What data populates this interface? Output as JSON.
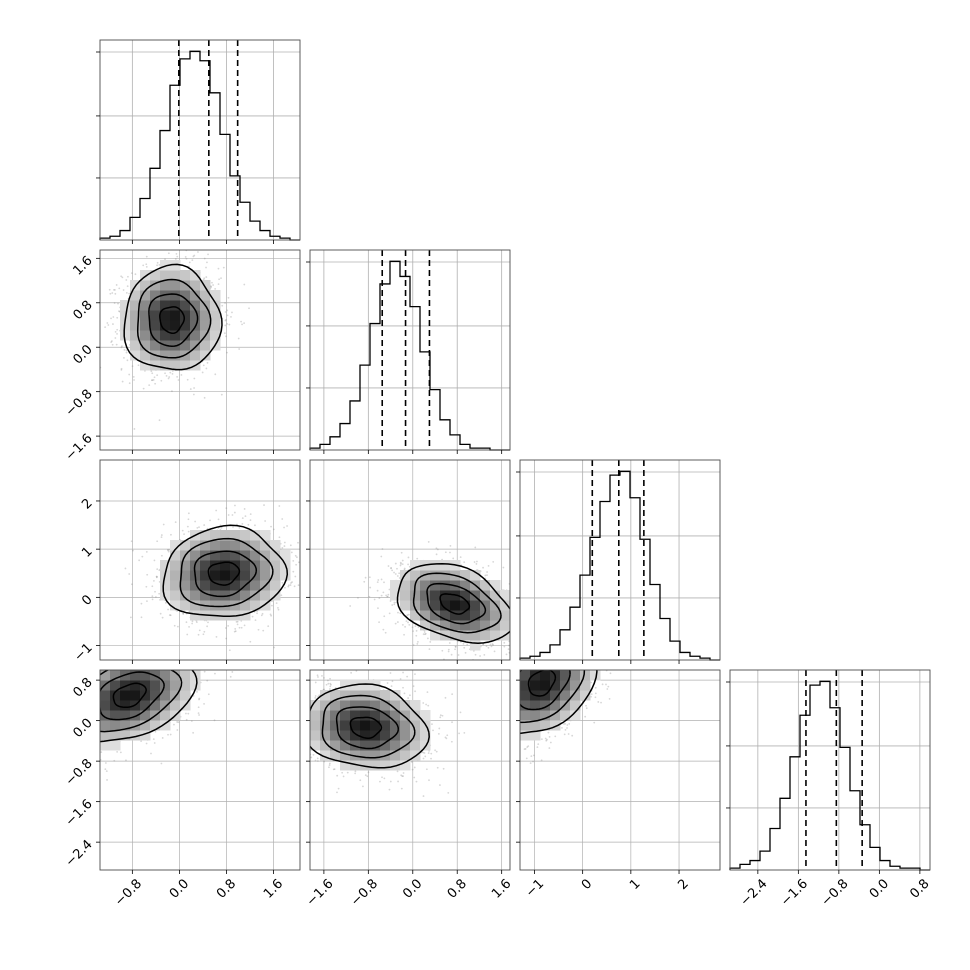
{
  "chart_data": {
    "type": "corner",
    "variables": [
      {
        "index": 0,
        "range": [
          -1.35,
          2.05
        ],
        "ticks": [
          -0.8,
          0.0,
          0.8,
          1.6
        ],
        "tick_labels": [
          "−0.8",
          "0.0",
          "0.8",
          "1.6"
        ],
        "quantiles": [
          -0.01,
          0.5,
          0.99
        ]
      },
      {
        "index": 1,
        "range": [
          -1.85,
          1.75
        ],
        "ticks": [
          -1.6,
          -0.8,
          0.0,
          0.8,
          1.6
        ],
        "tick_labels": [
          "−1.6",
          "−0.8",
          "0.0",
          "0.8",
          "1.6"
        ],
        "quantiles": [
          -0.55,
          -0.13,
          0.3
        ]
      },
      {
        "index": 2,
        "range": [
          -1.3,
          2.85
        ],
        "ticks": [
          -1,
          0,
          1,
          2
        ],
        "tick_labels": [
          "−1",
          "0",
          "1",
          "2"
        ],
        "quantiles": [
          0.2,
          0.75,
          1.27
        ]
      },
      {
        "index": 3,
        "range": [
          -2.95,
          1.0
        ],
        "ticks": [
          -2.4,
          -1.6,
          -0.8,
          0.0,
          0.8
        ],
        "tick_labels": [
          "−2.4",
          "−1.6",
          "−0.8",
          "0.0",
          "0.8"
        ],
        "quantiles": [
          -1.45,
          -0.85,
          -0.34
        ]
      }
    ],
    "histograms": [
      {
        "variable": 0,
        "bin_edges_start": -1.35,
        "bin_width": 0.17,
        "counts": [
          1,
          2,
          5,
          12,
          22,
          38,
          58,
          82,
          96,
          100,
          95,
          78,
          56,
          34,
          20,
          10,
          5,
          2,
          1,
          0
        ]
      },
      {
        "variable": 1,
        "bin_edges_start": -1.85,
        "bin_width": 0.18,
        "counts": [
          1,
          3,
          7,
          14,
          26,
          45,
          67,
          88,
          100,
          92,
          76,
          52,
          32,
          16,
          8,
          3,
          1,
          1,
          0,
          0
        ]
      },
      {
        "variable": 2,
        "bin_edges_start": -1.3,
        "bin_width": 0.2075,
        "counts": [
          1,
          2,
          4,
          8,
          16,
          28,
          45,
          65,
          84,
          98,
          100,
          86,
          64,
          40,
          22,
          10,
          4,
          2,
          1,
          0
        ]
      },
      {
        "variable": 3,
        "bin_edges_start": -2.95,
        "bin_width": 0.1975,
        "counts": [
          1,
          3,
          5,
          10,
          22,
          38,
          60,
          82,
          98,
          100,
          86,
          65,
          42,
          24,
          12,
          5,
          2,
          1,
          1,
          0
        ]
      }
    ],
    "pairs": [
      {
        "x": 1,
        "y": 0,
        "mean": [
          0.5,
          -0.13
        ],
        "sd": [
          0.47,
          0.41
        ],
        "corr": 0.0
      },
      {
        "x": 2,
        "y": 0,
        "mean": [
          0.5,
          0.75
        ],
        "sd": [
          0.47,
          0.52
        ],
        "corr": 0.08
      },
      {
        "x": 2,
        "y": 1,
        "mean": [
          -0.13,
          0.75
        ],
        "sd": [
          0.41,
          0.52
        ],
        "corr": -0.35
      },
      {
        "x": 3,
        "y": 0,
        "mean": [
          0.5,
          -0.85
        ],
        "sd": [
          0.47,
          0.55
        ],
        "corr": 0.35
      },
      {
        "x": 3,
        "y": 1,
        "mean": [
          -0.13,
          -0.85
        ],
        "sd": [
          0.41,
          0.55
        ],
        "corr": -0.12
      },
      {
        "x": 3,
        "y": 2,
        "mean": [
          0.75,
          -0.85
        ],
        "sd": [
          0.52,
          0.55
        ],
        "corr": 0.3
      }
    ],
    "contour_levels_sigma": [
      0.5,
      1.0,
      1.5,
      2.0
    ],
    "grid": true,
    "colors": {
      "hist": "#000000",
      "scatter": "#8c8c8c",
      "grid": "#b0b0b0",
      "frame": "#4d4d4d"
    }
  }
}
